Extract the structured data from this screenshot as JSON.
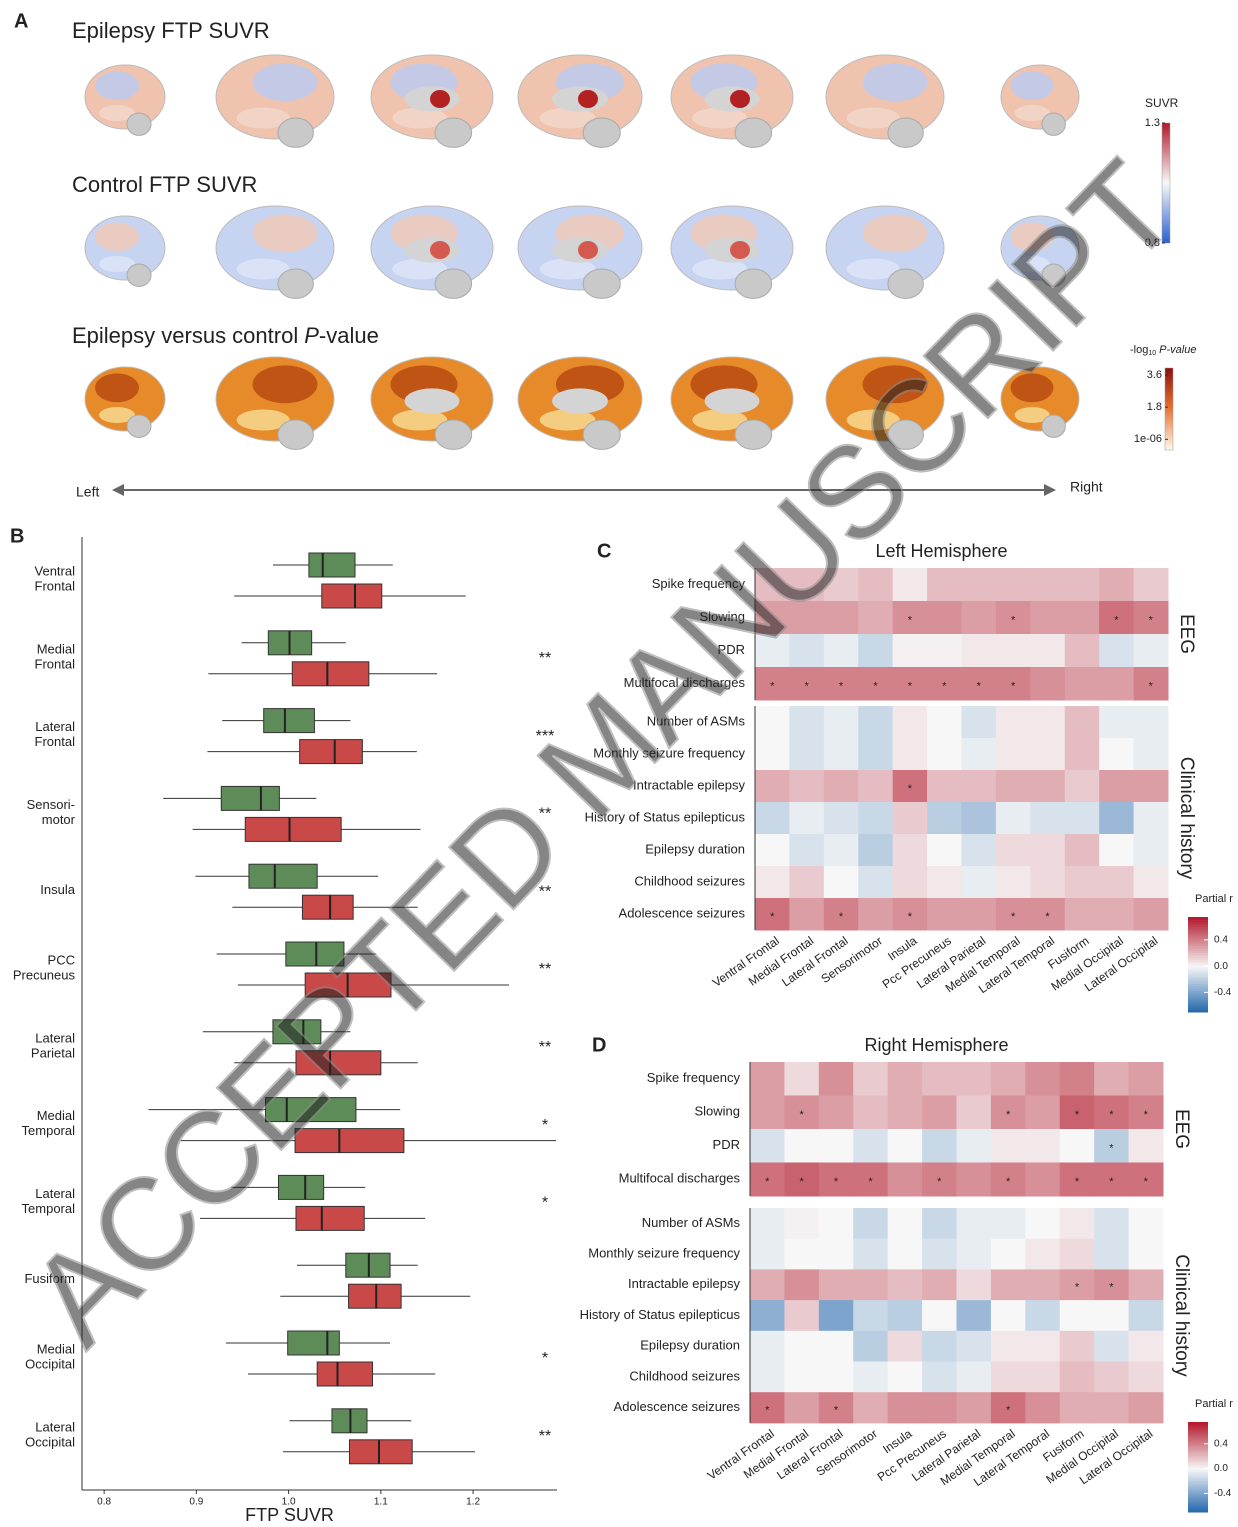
{
  "panel_a": {
    "label": "A",
    "rows": [
      {
        "title": "Epilepsy FTP SUVR"
      },
      {
        "title": "Control FTP SUVR"
      },
      {
        "title_parts": [
          "Epilepsy versus control",
          "P",
          "-value"
        ]
      }
    ],
    "suvr_colorbar": {
      "title": "SUVR",
      "lim": [
        0.8,
        1.3
      ],
      "ticks": [
        1.3,
        0.8
      ]
    },
    "p_colorbar": {
      "title_parts": [
        "-log",
        "10",
        "P-value"
      ],
      "lim": [
        -0.6,
        4
      ],
      "ticks": [
        3.6,
        1.8,
        {
          "value": 1e-06,
          "label": "1e-06"
        }
      ]
    },
    "axis": {
      "left": "Left",
      "right": "Right"
    }
  },
  "watermark": "ACCEPTED MANUSCRIPT",
  "chart_data": [
    {
      "type": "box",
      "label": "B",
      "xlabel": "FTP SUVR",
      "xlim": [
        0.776,
        1.291
      ],
      "xticks": [
        0.8,
        0.9,
        {
          "value": 1,
          "label": "1.0"
        },
        1.1,
        1.2
      ],
      "categories": [
        [
          "Ventral",
          "Frontal"
        ],
        [
          "Medial",
          "Frontal"
        ],
        [
          "Lateral",
          "Frontal"
        ],
        [
          "Sensori-",
          "motor"
        ],
        [
          "Insula"
        ],
        [
          "PCC",
          "Precuneus"
        ],
        [
          "Lateral",
          "Parietal"
        ],
        [
          "Medial",
          "Temporal"
        ],
        [
          "Lateral",
          "Temporal"
        ],
        [
          "Fusiform"
        ],
        [
          "Medial",
          "Occipital"
        ],
        [
          "Lateral",
          "Occipital"
        ]
      ],
      "series": [
        {
          "color": "#5e8c58",
          "whisker_low": [
            0.983,
            0.949,
            0.928,
            0.864,
            0.899,
            0.922,
            0.907,
            0.848,
            0.938,
            1.009,
            0.932,
            1.001
          ],
          "q1": [
            1.022,
            0.978,
            0.973,
            0.927,
            0.957,
            0.997,
            0.983,
            0.975,
            0.989,
            1.062,
            0.999,
            1.047
          ],
          "median": [
            1.037,
            1.001,
            0.996,
            0.97,
            0.985,
            1.03,
            1.016,
            0.998,
            1.018,
            1.087,
            1.042,
            1.067
          ],
          "q3": [
            1.072,
            1.025,
            1.028,
            0.99,
            1.031,
            1.06,
            1.035,
            1.073,
            1.038,
            1.11,
            1.055,
            1.085
          ],
          "whisker_high": [
            1.113,
            1.062,
            1.067,
            1.03,
            1.097,
            1.095,
            1.067,
            1.121,
            1.083,
            1.14,
            1.11,
            1.133
          ]
        },
        {
          "color": "#c94848",
          "whisker_low": [
            0.941,
            0.913,
            0.912,
            0.896,
            0.939,
            0.945,
            0.941,
            0.883,
            0.904,
            0.991,
            0.956,
            0.994
          ],
          "q1": [
            1.036,
            1.004,
            1.012,
            0.953,
            1.015,
            1.018,
            1.008,
            1.007,
            1.008,
            1.065,
            1.031,
            1.066
          ],
          "median": [
            1.072,
            1.042,
            1.05,
            1.001,
            1.045,
            1.064,
            1.045,
            1.055,
            1.036,
            1.095,
            1.053,
            1.098
          ],
          "q3": [
            1.101,
            1.087,
            1.08,
            1.057,
            1.07,
            1.111,
            1.1,
            1.125,
            1.082,
            1.122,
            1.091,
            1.134
          ],
          "whisker_high": [
            1.192,
            1.161,
            1.139,
            1.143,
            1.14,
            1.239,
            1.14,
            1.29,
            1.148,
            1.197,
            1.159,
            1.202
          ]
        }
      ],
      "annotations": [
        null,
        "**",
        "***",
        "**",
        "**",
        "**",
        "**",
        "*",
        "*",
        null,
        "*",
        "**"
      ]
    },
    {
      "type": "heatmap",
      "label": "C",
      "title": "Left Hemisphere",
      "columns": [
        "Ventral Frontal",
        "Medial Frontal",
        "Lateral Frontal",
        "Sensorimotor",
        "Insula",
        "Pcc Precuneus",
        "Lateral Parietal",
        "Medial Temporal",
        "Lateral Temporal",
        "Fusiform",
        "Medial Occipital",
        "Lateral Occipital"
      ],
      "colorbar": {
        "title": "Partial r",
        "lim": [
          -0.7,
          0.75
        ],
        "ticks": [
          0.4,
          {
            "value": 0,
            "label": "0.0"
          },
          -0.4
        ]
      },
      "groups": [
        {
          "label": "EEG",
          "rows": [
            "Spike frequency",
            "Slowing",
            "PDR",
            "Multifocal discharges"
          ],
          "values": [
            [
              0.2,
              0.2,
              0.15,
              0.2,
              0.05,
              0.2,
              0.2,
              0.2,
              0.2,
              0.2,
              0.25,
              0.15
            ],
            [
              0.3,
              0.3,
              0.3,
              0.25,
              0.35,
              0.35,
              0.3,
              0.35,
              0.3,
              0.3,
              0.45,
              0.4
            ],
            [
              -0.05,
              -0.1,
              -0.05,
              -0.15,
              0.02,
              0.02,
              0.05,
              0.05,
              0.05,
              0.2,
              -0.1,
              -0.05
            ],
            [
              0.4,
              0.4,
              0.4,
              0.4,
              0.4,
              0.4,
              0.4,
              0.4,
              0.35,
              0.3,
              0.3,
              0.4
            ]
          ],
          "stars": [
            [
              null,
              null,
              null,
              null,
              null,
              null,
              null,
              null,
              null,
              null,
              null,
              null
            ],
            [
              null,
              null,
              null,
              null,
              "*",
              null,
              null,
              "*",
              null,
              null,
              "*",
              "*"
            ],
            [
              null,
              null,
              null,
              null,
              null,
              null,
              null,
              null,
              null,
              null,
              null,
              null
            ],
            [
              "*",
              "*",
              "*",
              "*",
              "*",
              "*",
              "*",
              "*",
              null,
              null,
              null,
              "*"
            ]
          ]
        },
        {
          "label": "Clinical history",
          "rows": [
            "Number of ASMs",
            "Monthly seizure frequency",
            "Intractable epilepsy",
            "History of Status epilepticus",
            "Epilepsy duration",
            "Childhood seizures",
            "Adolescence seizures"
          ],
          "values": [
            [
              0.0,
              -0.1,
              -0.05,
              -0.15,
              0.05,
              0.0,
              -0.1,
              0.05,
              0.05,
              0.2,
              -0.05,
              -0.05
            ],
            [
              0.0,
              -0.1,
              -0.05,
              -0.15,
              0.05,
              0.0,
              -0.05,
              0.05,
              0.05,
              0.2,
              0.0,
              -0.05
            ],
            [
              0.25,
              0.2,
              0.25,
              0.2,
              0.45,
              0.2,
              0.2,
              0.25,
              0.25,
              0.15,
              0.3,
              0.3
            ],
            [
              -0.15,
              -0.05,
              -0.1,
              -0.15,
              0.15,
              -0.2,
              -0.25,
              -0.05,
              -0.1,
              -0.1,
              -0.3,
              -0.05
            ],
            [
              0.0,
              -0.1,
              -0.05,
              -0.2,
              0.1,
              0.0,
              -0.1,
              0.1,
              0.1,
              0.2,
              0.0,
              -0.05
            ],
            [
              0.05,
              0.15,
              0.0,
              -0.1,
              0.1,
              0.05,
              -0.05,
              0.05,
              0.1,
              0.15,
              0.15,
              0.05
            ],
            [
              0.45,
              0.3,
              0.4,
              0.3,
              0.35,
              0.3,
              0.3,
              0.35,
              0.35,
              0.25,
              0.25,
              0.3
            ]
          ],
          "stars": [
            [
              null,
              null,
              null,
              null,
              null,
              null,
              null,
              null,
              null,
              null,
              null,
              null
            ],
            [
              null,
              null,
              null,
              null,
              null,
              null,
              null,
              null,
              null,
              null,
              null,
              null
            ],
            [
              null,
              null,
              null,
              null,
              "*",
              null,
              null,
              null,
              null,
              null,
              null,
              null
            ],
            [
              null,
              null,
              null,
              null,
              null,
              null,
              null,
              null,
              null,
              null,
              null,
              null
            ],
            [
              null,
              null,
              null,
              null,
              null,
              null,
              null,
              null,
              null,
              null,
              null,
              null
            ],
            [
              null,
              null,
              null,
              null,
              null,
              null,
              null,
              null,
              null,
              null,
              null,
              null
            ],
            [
              "*",
              null,
              "*",
              null,
              "*",
              null,
              null,
              "*",
              "*",
              null,
              null,
              null
            ]
          ]
        }
      ]
    },
    {
      "type": "heatmap",
      "label": "D",
      "title": "Right Hemisphere",
      "columns": [
        "Ventral Frontal",
        "Medial Frontal",
        "Lateral Frontal",
        "Sensorimotor",
        "Insula",
        "Pcc Precuneus",
        "Lateral Parietal",
        "Medial Temporal",
        "Lateral Temporal",
        "Fusiform",
        "Medial Occipital",
        "Lateral Occipital"
      ],
      "colorbar": {
        "title": "Partial r",
        "lim": [
          -0.7,
          0.75
        ],
        "ticks": [
          0.4,
          {
            "value": 0,
            "label": "0.0"
          },
          -0.4
        ]
      },
      "groups": [
        {
          "label": "EEG",
          "rows": [
            "Spike frequency",
            "Slowing",
            "PDR",
            "Multifocal discharges"
          ],
          "values": [
            [
              0.3,
              0.1,
              0.35,
              0.15,
              0.25,
              0.2,
              0.2,
              0.25,
              0.35,
              0.4,
              0.25,
              0.3
            ],
            [
              0.3,
              0.35,
              0.3,
              0.2,
              0.25,
              0.3,
              0.15,
              0.35,
              0.3,
              0.5,
              0.45,
              0.4
            ],
            [
              -0.1,
              0.0,
              0.0,
              -0.1,
              0.0,
              -0.15,
              -0.05,
              0.05,
              0.05,
              0.0,
              -0.2,
              0.05
            ],
            [
              0.45,
              0.5,
              0.45,
              0.45,
              0.35,
              0.4,
              0.35,
              0.4,
              0.35,
              0.45,
              0.45,
              0.45
            ]
          ],
          "stars": [
            [
              null,
              null,
              null,
              null,
              null,
              null,
              null,
              null,
              null,
              null,
              null,
              null
            ],
            [
              null,
              "*",
              null,
              null,
              null,
              null,
              null,
              "*",
              null,
              "*",
              "*",
              "*"
            ],
            [
              null,
              null,
              null,
              null,
              null,
              null,
              null,
              null,
              null,
              null,
              "*",
              null
            ],
            [
              "*",
              "*",
              "*",
              "*",
              null,
              "*",
              null,
              "*",
              null,
              "*",
              "*",
              "*"
            ]
          ]
        },
        {
          "label": "Clinical history",
          "rows": [
            "Number of ASMs",
            "Monthly seizure frequency",
            "Intractable epilepsy",
            "History of Status epilepticus",
            "Epilepsy duration",
            "Childhood seizures",
            "Adolescence seizures"
          ],
          "values": [
            [
              -0.05,
              0.02,
              0.0,
              -0.15,
              0.0,
              -0.15,
              -0.05,
              -0.05,
              0.0,
              0.05,
              -0.1,
              0.0
            ],
            [
              -0.05,
              0.0,
              0.0,
              -0.1,
              0.0,
              -0.1,
              -0.05,
              0.0,
              0.05,
              0.1,
              -0.1,
              0.0
            ],
            [
              0.25,
              0.35,
              0.25,
              0.25,
              0.2,
              0.25,
              0.1,
              0.25,
              0.25,
              0.3,
              0.35,
              0.25
            ],
            [
              -0.35,
              0.15,
              -0.4,
              -0.15,
              -0.2,
              0.0,
              -0.3,
              0.0,
              -0.15,
              0.0,
              0.0,
              -0.15
            ],
            [
              -0.05,
              0.0,
              0.0,
              -0.2,
              0.1,
              -0.15,
              -0.1,
              0.05,
              0.05,
              0.15,
              -0.1,
              0.05
            ],
            [
              -0.05,
              0.0,
              0.0,
              -0.05,
              0.0,
              -0.1,
              -0.05,
              0.1,
              0.1,
              0.2,
              0.15,
              0.1
            ],
            [
              0.45,
              0.3,
              0.4,
              0.25,
              0.35,
              0.35,
              0.3,
              0.45,
              0.35,
              0.25,
              0.25,
              0.3
            ]
          ],
          "stars": [
            [
              null,
              null,
              null,
              null,
              null,
              null,
              null,
              null,
              null,
              null,
              null,
              null
            ],
            [
              null,
              null,
              null,
              null,
              null,
              null,
              null,
              null,
              null,
              null,
              null,
              null
            ],
            [
              null,
              null,
              null,
              null,
              null,
              null,
              null,
              null,
              null,
              "*",
              "*",
              null
            ],
            [
              null,
              null,
              null,
              null,
              null,
              null,
              null,
              null,
              null,
              null,
              null,
              null
            ],
            [
              null,
              null,
              null,
              null,
              null,
              null,
              null,
              null,
              null,
              null,
              null,
              null
            ],
            [
              null,
              null,
              null,
              null,
              null,
              null,
              null,
              null,
              null,
              null,
              null,
              null
            ],
            [
              "*",
              null,
              "*",
              null,
              null,
              null,
              null,
              "*",
              null,
              null,
              null,
              null
            ]
          ]
        }
      ]
    }
  ]
}
